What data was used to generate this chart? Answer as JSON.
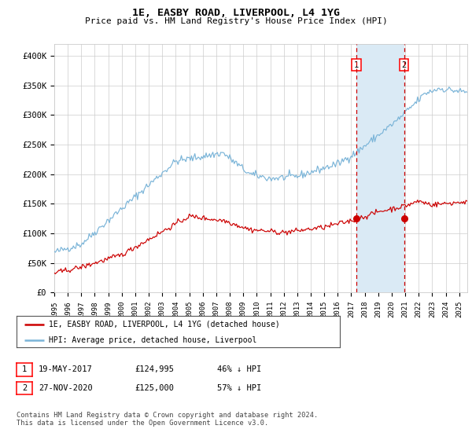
{
  "title": "1E, EASBY ROAD, LIVERPOOL, L4 1YG",
  "subtitle": "Price paid vs. HM Land Registry's House Price Index (HPI)",
  "ylabel_ticks": [
    "£0",
    "£50K",
    "£100K",
    "£150K",
    "£200K",
    "£250K",
    "£300K",
    "£350K",
    "£400K"
  ],
  "ytick_values": [
    0,
    50000,
    100000,
    150000,
    200000,
    250000,
    300000,
    350000,
    400000
  ],
  "ylim": [
    0,
    420000
  ],
  "xlim_start": 1995.0,
  "xlim_end": 2025.6,
  "sale1_date": 2017.37,
  "sale1_price": 124995,
  "sale2_date": 2020.92,
  "sale2_price": 125000,
  "hpi_color": "#7ab4d8",
  "price_color": "#cc0000",
  "shade_color": "#daeaf5",
  "dashed_line_color": "#cc0000",
  "background_color": "#ffffff",
  "grid_color": "#cccccc",
  "legend_label1": "1E, EASBY ROAD, LIVERPOOL, L4 1YG (detached house)",
  "legend_label2": "HPI: Average price, detached house, Liverpool",
  "table_row1": [
    "1",
    "19-MAY-2017",
    "£124,995",
    "46% ↓ HPI"
  ],
  "table_row2": [
    "2",
    "27-NOV-2020",
    "£125,000",
    "57% ↓ HPI"
  ],
  "footer": "Contains HM Land Registry data © Crown copyright and database right 2024.\nThis data is licensed under the Open Government Licence v3.0.",
  "xtick_years": [
    1995,
    1996,
    1997,
    1998,
    1999,
    2000,
    2001,
    2002,
    2003,
    2004,
    2005,
    2006,
    2007,
    2008,
    2009,
    2010,
    2011,
    2012,
    2013,
    2014,
    2015,
    2016,
    2017,
    2018,
    2019,
    2020,
    2021,
    2022,
    2023,
    2024,
    2025
  ]
}
